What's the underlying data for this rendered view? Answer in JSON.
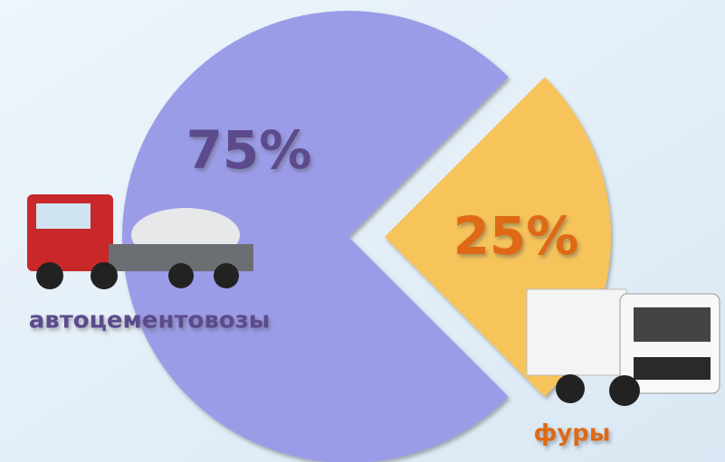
{
  "chart_data": {
    "type": "pie",
    "categories": [
      "автоцементовозы",
      "фуры"
    ],
    "values": [
      75,
      25
    ],
    "value_labels": [
      "75%",
      "25%"
    ],
    "colors": [
      "#9b9ce8",
      "#f6c45a"
    ]
  }
}
